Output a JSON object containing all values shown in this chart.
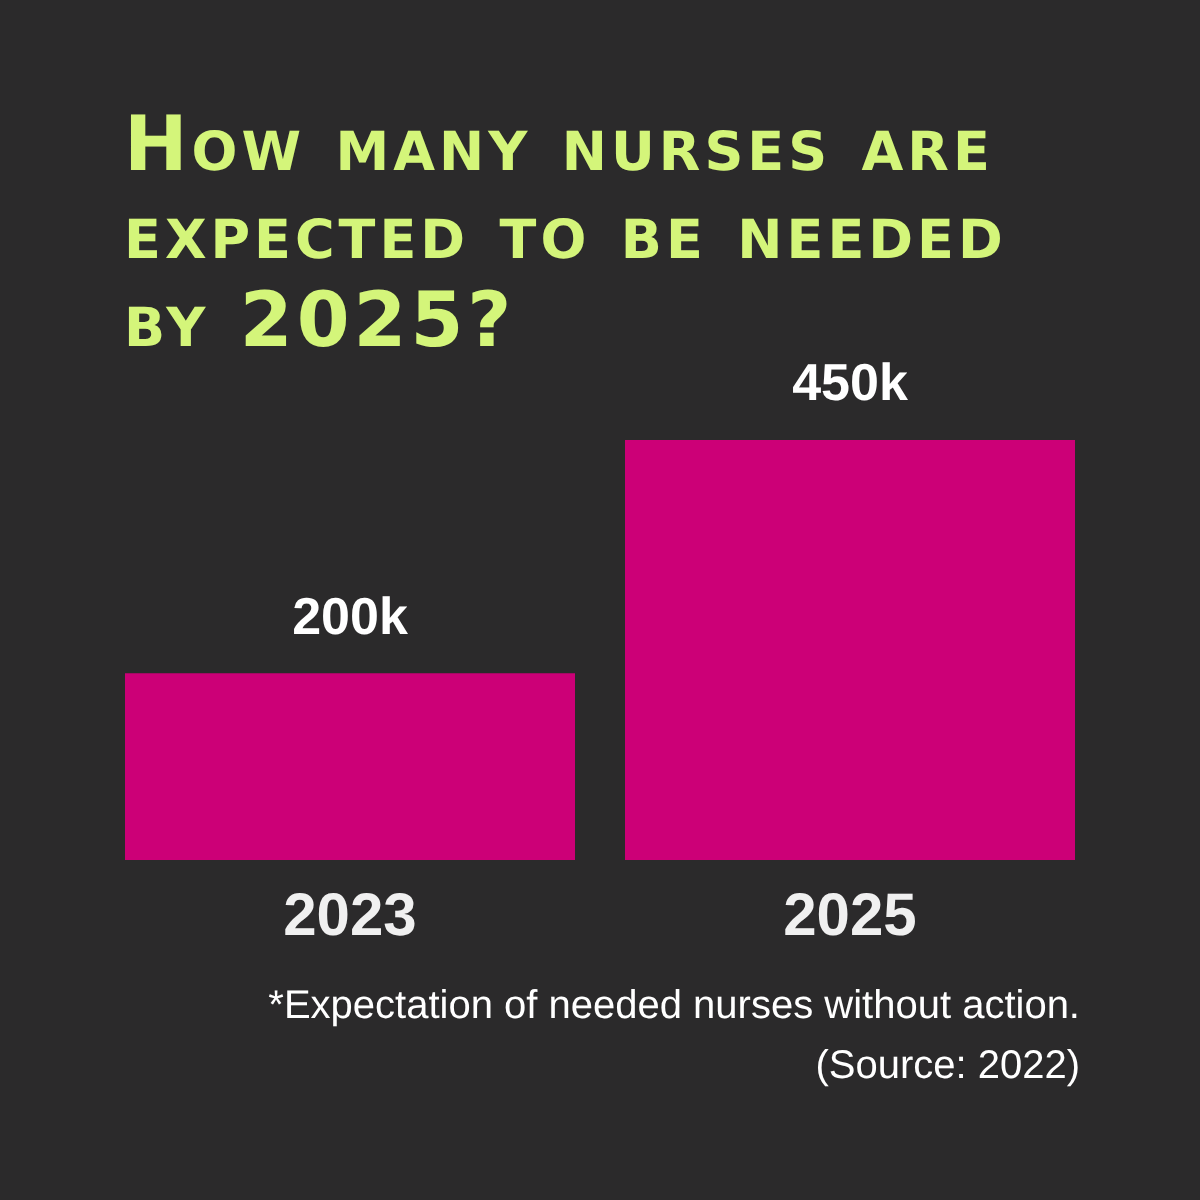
{
  "chart_data": {
    "type": "bar",
    "title": "How many nurses are expected to be needed by 2025?",
    "categories": [
      "2023",
      "2025"
    ],
    "values": [
      200000,
      450000
    ],
    "value_labels": [
      "200k",
      "450k"
    ],
    "color": "#cc0077",
    "annotations": [
      "*Expectation of needed nurses without action.",
      "(Source: 2022)"
    ]
  }
}
